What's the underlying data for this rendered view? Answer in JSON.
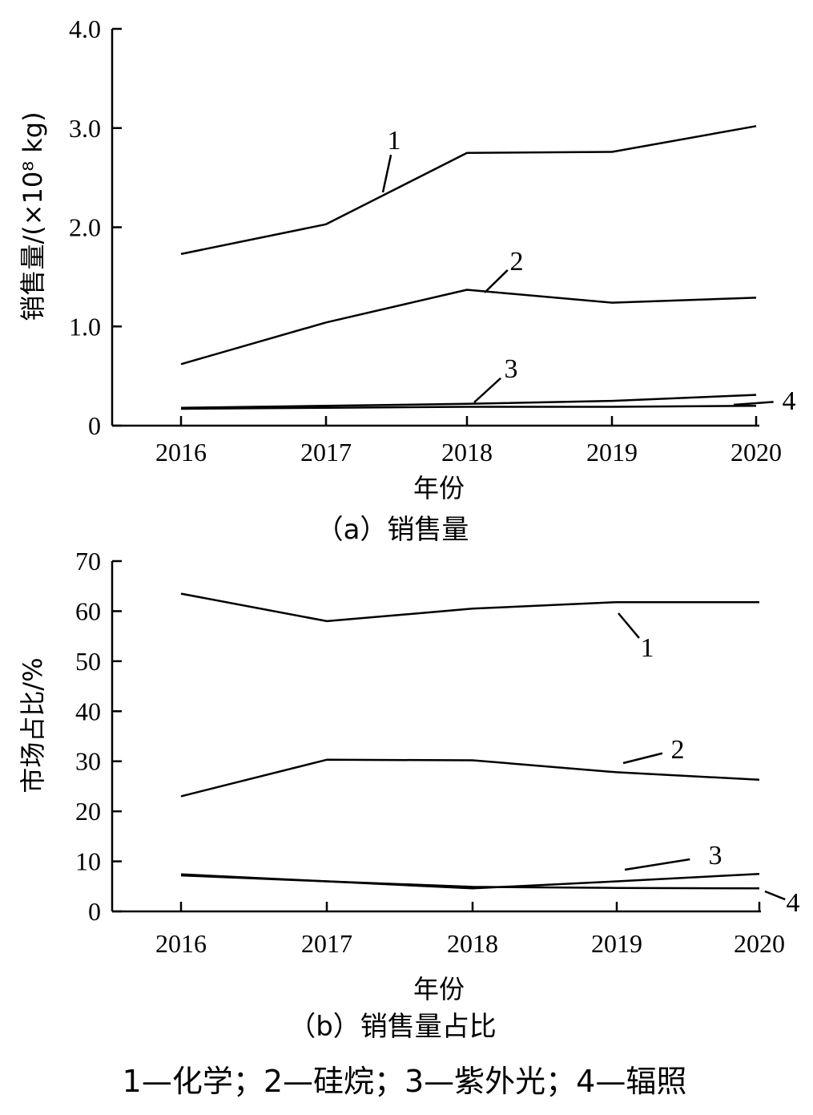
{
  "chart_data": [
    {
      "type": "line",
      "panel": "a",
      "caption": "（a）销售量",
      "xlabel": "年份",
      "ylabel": "销售量/(×10⁸ kg)",
      "categories": [
        "2016",
        "2017",
        "2018",
        "2019",
        "2020"
      ],
      "ylim": [
        0,
        4.0
      ],
      "yticks": [
        "0",
        "1.0",
        "2.0",
        "3.0",
        "4.0"
      ],
      "ytick_values": [
        0,
        1.0,
        2.0,
        3.0,
        4.0
      ],
      "series": [
        {
          "name": "1",
          "values": [
            1.73,
            2.03,
            2.75,
            2.76,
            3.02
          ]
        },
        {
          "name": "2",
          "values": [
            0.62,
            1.04,
            1.37,
            1.24,
            1.29
          ]
        },
        {
          "name": "3",
          "values": [
            0.18,
            0.2,
            0.22,
            0.25,
            0.31
          ]
        },
        {
          "name": "4",
          "values": [
            0.17,
            0.18,
            0.19,
            0.19,
            0.2
          ]
        }
      ]
    },
    {
      "type": "line",
      "panel": "b",
      "caption": "（b）销售量占比",
      "xlabel": "年份",
      "ylabel": "市场占比/%",
      "categories": [
        "2016",
        "2017",
        "2018",
        "2019",
        "2020"
      ],
      "ylim": [
        0,
        70
      ],
      "yticks": [
        "0",
        "10",
        "20",
        "30",
        "40",
        "50",
        "60",
        "70"
      ],
      "ytick_values": [
        0,
        10,
        20,
        30,
        40,
        50,
        60,
        70
      ],
      "series": [
        {
          "name": "1",
          "values": [
            63.5,
            58.0,
            60.5,
            61.8,
            61.8
          ]
        },
        {
          "name": "2",
          "values": [
            23.0,
            30.3,
            30.2,
            27.8,
            26.3
          ]
        },
        {
          "name": "3",
          "values": [
            7.4,
            6.0,
            4.6,
            6.0,
            7.5
          ]
        },
        {
          "name": "4",
          "values": [
            7.2,
            6.0,
            4.9,
            4.7,
            4.6
          ]
        }
      ]
    }
  ],
  "legend": "1—化学；2—硅烷；3—紫外光；4—辐照"
}
